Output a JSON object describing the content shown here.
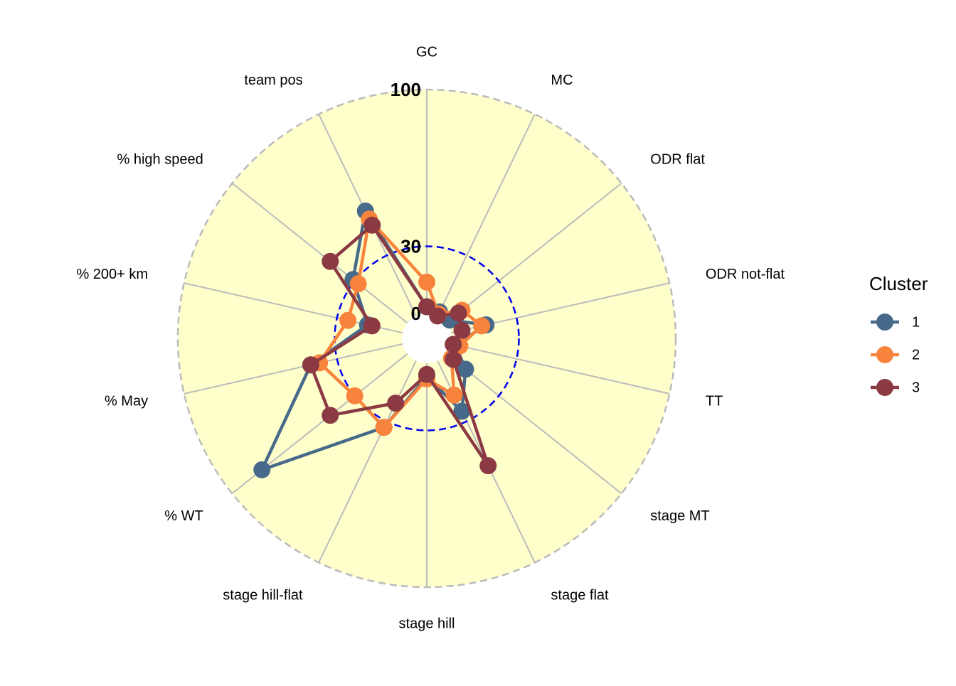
{
  "chart_data": {
    "type": "radar",
    "categories": [
      "GC",
      "MC",
      "ODR flat",
      "ODR not-flat",
      "TT",
      "stage MT",
      "stage flat",
      "stage hill",
      "stage hill-flat",
      "% WT",
      "% May",
      "% 200+ km",
      "% high speed",
      "team pos"
    ],
    "legend_title": "Cluster",
    "series": [
      {
        "name": "1",
        "color": "#476a8a",
        "values": [
          3,
          2,
          2,
          16,
          2,
          11,
          25,
          6,
          33,
          83,
          42,
          16,
          31,
          52
        ]
      },
      {
        "name": "2",
        "color": "#f8833c",
        "values": [
          14,
          1,
          9,
          14,
          4,
          3,
          17,
          7,
          33,
          30,
          38,
          25,
          28,
          48
        ]
      },
      {
        "name": "3",
        "color": "#8b3a44",
        "values": [
          3,
          0,
          7,
          5,
          1,
          4,
          52,
          5,
          21,
          44,
          42,
          14,
          44,
          45
        ]
      }
    ],
    "ylim": [
      0,
      100
    ],
    "yticks": [
      0,
      30,
      100
    ],
    "background": "#ffffcc",
    "legend_position": "right"
  }
}
